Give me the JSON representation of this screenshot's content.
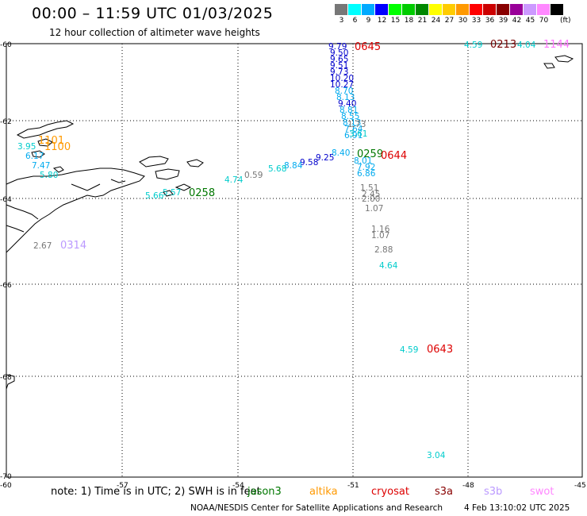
{
  "header": {
    "title": "00:00 – 11:59 UTC 01/03/2025",
    "subtitle": "12 hour collection of altimeter wave heights"
  },
  "legend": {
    "unit": "(ft)",
    "bins": [
      {
        "label": "3",
        "color": "#777777"
      },
      {
        "label": "6",
        "color": "#00ffff"
      },
      {
        "label": "9",
        "color": "#00aaff"
      },
      {
        "label": "12",
        "color": "#0000ff"
      },
      {
        "label": "15",
        "color": "#00ff00"
      },
      {
        "label": "18",
        "color": "#00cc00"
      },
      {
        "label": "21",
        "color": "#008800"
      },
      {
        "label": "24",
        "color": "#ffff00"
      },
      {
        "label": "27",
        "color": "#ffcc00"
      },
      {
        "label": "30",
        "color": "#ff9900"
      },
      {
        "label": "33",
        "color": "#ff0000"
      },
      {
        "label": "36",
        "color": "#cc0000"
      },
      {
        "label": "39",
        "color": "#880000"
      },
      {
        "label": "42",
        "color": "#990099"
      },
      {
        "label": "45",
        "color": "#cc99ff"
      },
      {
        "label": "70",
        "color": "#ff88ff"
      },
      {
        "label": "",
        "color": "#000000"
      }
    ]
  },
  "axes": {
    "lat_labels": [
      "-60",
      "-62",
      "-64",
      "-66",
      "-68",
      "-70"
    ],
    "lon_labels": [
      "-60",
      "-57",
      "-54",
      "-51",
      "-48",
      "-45"
    ]
  },
  "time_labels": [
    {
      "text": "0645",
      "color": "#dd0000"
    },
    {
      "text": "0213",
      "color": "#770000"
    },
    {
      "text": "1144",
      "color": "#ff77ff"
    },
    {
      "text": "1101",
      "color": "#ff9900"
    },
    {
      "text": "1100",
      "color": "#ff9900"
    },
    {
      "text": "0259",
      "color": "#007700"
    },
    {
      "text": "0644",
      "color": "#dd0000"
    },
    {
      "text": "0258",
      "color": "#007700"
    },
    {
      "text": "0314",
      "color": "#bb99ff"
    },
    {
      "text": "0643",
      "color": "#dd0000"
    }
  ],
  "wave_heights": [
    {
      "text": "4.59",
      "color": "#00cccc"
    },
    {
      "text": "4.04",
      "color": "#00cccc"
    },
    {
      "text": "9.79",
      "color": "#0000cc"
    },
    {
      "text": "9.50",
      "color": "#0000cc"
    },
    {
      "text": "9.65",
      "color": "#0000cc"
    },
    {
      "text": "9.51",
      "color": "#0000cc"
    },
    {
      "text": "9.73",
      "color": "#0000cc"
    },
    {
      "text": "10.20",
      "color": "#0000cc"
    },
    {
      "text": "10.27",
      "color": "#0000cc"
    },
    {
      "text": "8.70",
      "color": "#00aaee"
    },
    {
      "text": "8.13",
      "color": "#00aaee"
    },
    {
      "text": "9.40",
      "color": "#0000cc"
    },
    {
      "text": "8.81",
      "color": "#00aaee"
    },
    {
      "text": "8.55",
      "color": "#00aaee"
    },
    {
      "text": "8.13",
      "color": "#00aaee"
    },
    {
      "text": "7.64",
      "color": "#00aaee"
    },
    {
      "text": "6.91",
      "color": "#00aaee"
    },
    {
      "text": "1.73",
      "color": "#777777"
    },
    {
      "text": "3.61",
      "color": "#00cccc"
    },
    {
      "text": "3.95",
      "color": "#00cccc"
    },
    {
      "text": "6.17",
      "color": "#00aaee"
    },
    {
      "text": "7.47",
      "color": "#00aaee"
    },
    {
      "text": "5.80",
      "color": "#00cccc"
    },
    {
      "text": "8.40",
      "color": "#00aaee"
    },
    {
      "text": "9.25",
      "color": "#0000cc"
    },
    {
      "text": "9.58",
      "color": "#0000cc"
    },
    {
      "text": "8.84",
      "color": "#00aaee"
    },
    {
      "text": "5.68",
      "color": "#00cccc"
    },
    {
      "text": "4.74",
      "color": "#00cccc"
    },
    {
      "text": "0.59",
      "color": "#777777"
    },
    {
      "text": "8.01",
      "color": "#00aaee"
    },
    {
      "text": "7.92",
      "color": "#00aaee"
    },
    {
      "text": "6.86",
      "color": "#00aaee"
    },
    {
      "text": "5.66",
      "color": "#00cccc"
    },
    {
      "text": "5.57",
      "color": "#00cccc"
    },
    {
      "text": "1.51",
      "color": "#777777"
    },
    {
      "text": "2.45",
      "color": "#777777"
    },
    {
      "text": "2.00",
      "color": "#777777"
    },
    {
      "text": "1.07",
      "color": "#777777"
    },
    {
      "text": "2.67",
      "color": "#777777"
    },
    {
      "text": "1.16",
      "color": "#777777"
    },
    {
      "text": "1.07",
      "color": "#777777"
    },
    {
      "text": "2.88",
      "color": "#777777"
    },
    {
      "text": "4.64",
      "color": "#00cccc"
    },
    {
      "text": "4.59",
      "color": "#00cccc"
    },
    {
      "text": "3.04",
      "color": "#00cccc"
    }
  ],
  "footer": {
    "note": "note: 1) Time is in UTC; 2) SWH is in feet",
    "missions": [
      {
        "name": "jason3",
        "color": "#007700"
      },
      {
        "name": "altika",
        "color": "#ff9900"
      },
      {
        "name": "cryosat",
        "color": "#dd0000"
      },
      {
        "name": "s3a",
        "color": "#880000"
      },
      {
        "name": "s3b",
        "color": "#bb99ff"
      },
      {
        "name": "swot",
        "color": "#ff88ff"
      }
    ],
    "credit": "NOAA/NESDIS Center for Satellite Applications and Research",
    "timestamp": "4 Feb 13:10:02 UTC 2025"
  }
}
